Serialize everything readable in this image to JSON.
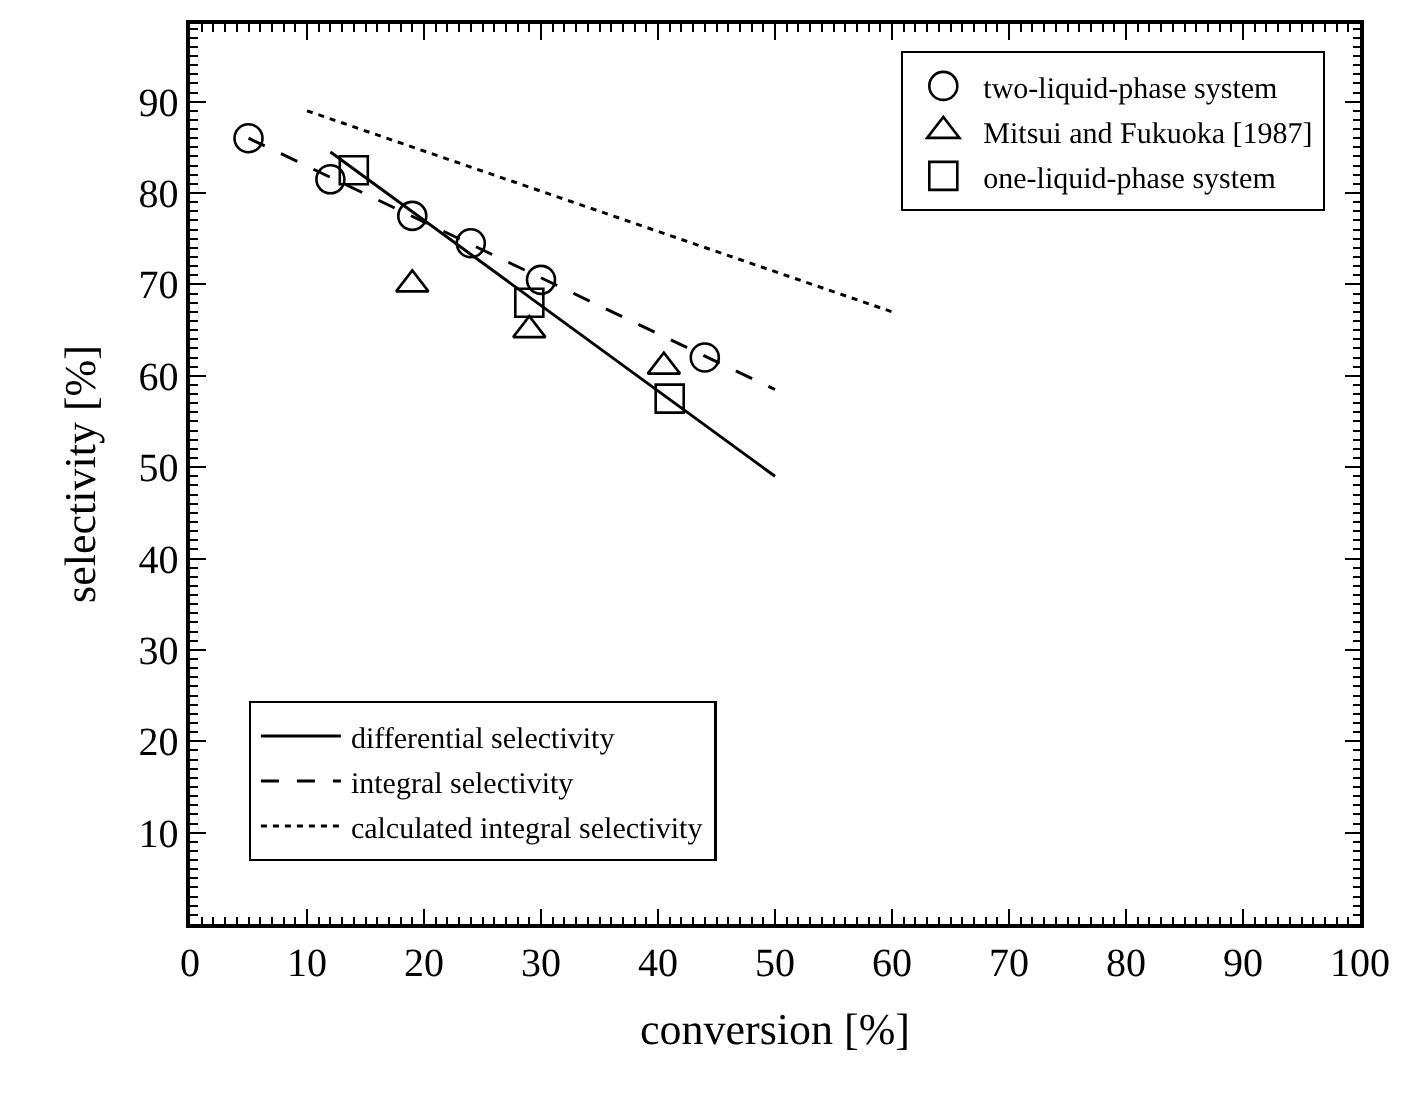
{
  "chart_data": {
    "type": "scatter",
    "xlabel": "conversion [%]",
    "ylabel": "selectivity [%]",
    "xlim": [
      0,
      100
    ],
    "ylim": [
      0,
      98.5
    ],
    "xticks": [
      0,
      10,
      20,
      30,
      40,
      50,
      60,
      70,
      80,
      90,
      100
    ],
    "yticks": [
      10,
      20,
      30,
      40,
      50,
      60,
      70,
      80,
      90
    ],
    "legend": "top right",
    "series": [
      {
        "name": "two-liquid-phase system",
        "marker": "circle",
        "color": "#000000",
        "x": [
          5,
          12,
          19,
          24,
          30,
          44
        ],
        "values": [
          86,
          81.5,
          77.5,
          74.5,
          70.5,
          62
        ]
      },
      {
        "name": "Mitsui and Fukuoka [1987]",
        "marker": "triangle",
        "color": "#000000",
        "x": [
          19,
          29,
          40.5
        ],
        "values": [
          70,
          65,
          61
        ]
      },
      {
        "name": "one-liquid-phase system",
        "marker": "square",
        "color": "#000000",
        "x": [
          14,
          29,
          41
        ],
        "values": [
          82.5,
          68,
          57.5
        ]
      },
      {
        "name": "differential selectivity",
        "type": "line",
        "line_style": "solid",
        "color": "#000000",
        "x": [
          12,
          50
        ],
        "values": [
          84.5,
          49
        ]
      },
      {
        "name": "integral selectivity",
        "type": "line",
        "line_style": "dashed",
        "color": "#000000",
        "x": [
          5,
          50
        ],
        "values": [
          86,
          58.5
        ]
      },
      {
        "name": "calculated integral selectivity",
        "type": "line",
        "line_style": "dotted",
        "color": "#000000",
        "x": [
          10,
          60
        ],
        "values": [
          89,
          67
        ]
      }
    ]
  }
}
